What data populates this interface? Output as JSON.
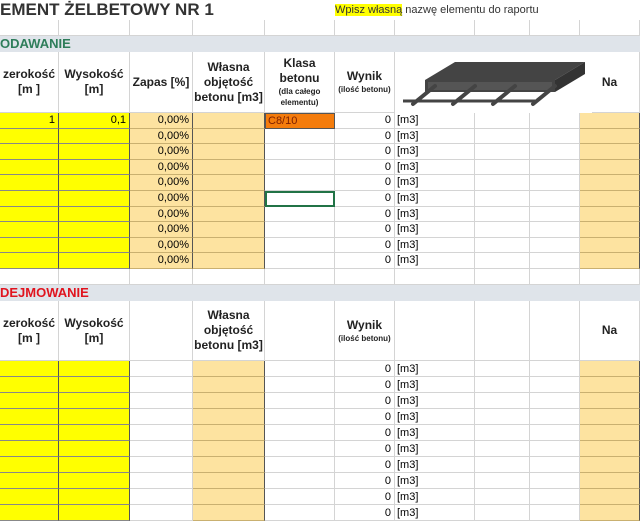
{
  "title": "EMENT ŻELBETOWY NR 1",
  "hint": {
    "highlight": "Wpisz własną",
    "rest": " nazwę elementu do raportu"
  },
  "sections": [
    {
      "label": "ODAWANIE",
      "color": "#2e7d5a",
      "headers": {
        "c0": "zerokość [m ]",
        "c1": "Wysokość [m]",
        "c2": "Zapas [%]",
        "c3": "Własna objętość betonu [m3]",
        "c4": "Klasa betonu",
        "c4s": "(dla całego elementu)",
        "c5": "Wynik",
        "c5s": "(ilość betonu)",
        "c9": "Na"
      },
      "rows": [
        {
          "szer": "1",
          "wys": "0,1",
          "zapas": "0,00%",
          "klasa": "C8/10",
          "wynik": "0",
          "unit": "[m3]"
        },
        {
          "szer": "",
          "wys": "",
          "zapas": "0,00%",
          "klasa": "",
          "wynik": "0",
          "unit": "[m3]"
        },
        {
          "szer": "",
          "wys": "",
          "zapas": "0,00%",
          "klasa": "",
          "wynik": "0",
          "unit": "[m3]"
        },
        {
          "szer": "",
          "wys": "",
          "zapas": "0,00%",
          "klasa": "",
          "wynik": "0",
          "unit": "[m3]"
        },
        {
          "szer": "",
          "wys": "",
          "zapas": "0,00%",
          "klasa": "",
          "wynik": "0",
          "unit": "[m3]"
        },
        {
          "szer": "",
          "wys": "",
          "zapas": "0,00%",
          "klasa": "",
          "wynik": "0",
          "unit": "[m3]"
        },
        {
          "szer": "",
          "wys": "",
          "zapas": "0,00%",
          "klasa": "",
          "wynik": "0",
          "unit": "[m3]"
        },
        {
          "szer": "",
          "wys": "",
          "zapas": "0,00%",
          "klasa": "",
          "wynik": "0",
          "unit": "[m3]"
        },
        {
          "szer": "",
          "wys": "",
          "zapas": "0,00%",
          "klasa": "",
          "wynik": "0",
          "unit": "[m3]"
        },
        {
          "szer": "",
          "wys": "",
          "zapas": "0,00%",
          "klasa": "",
          "wynik": "0",
          "unit": "[m3]"
        }
      ]
    },
    {
      "label": "DEJMOWANIE",
      "color": "#e0141e",
      "headers": {
        "c0": "zerokość [m ]",
        "c1": "Wysokość [m]",
        "c3": "Własna objętość betonu [m3]",
        "c5": "Wynik",
        "c5s": "(ilość betonu)",
        "c9": "Na"
      },
      "rows": [
        {
          "wynik": "0",
          "unit": "[m3]"
        },
        {
          "wynik": "0",
          "unit": "[m3]"
        },
        {
          "wynik": "0",
          "unit": "[m3]"
        },
        {
          "wynik": "0",
          "unit": "[m3]"
        },
        {
          "wynik": "0",
          "unit": "[m3]"
        },
        {
          "wynik": "0",
          "unit": "[m3]"
        },
        {
          "wynik": "0",
          "unit": "[m3]"
        },
        {
          "wynik": "0",
          "unit": "[m3]"
        },
        {
          "wynik": "0",
          "unit": "[m3]"
        },
        {
          "wynik": "0",
          "unit": "[m3]"
        }
      ]
    }
  ],
  "colors": {
    "input": "#ffff00",
    "calc": "#fde3a0",
    "class": "#f47c0c",
    "selection": "#217346"
  },
  "image": {
    "icon": "reinforced-slab-icon"
  }
}
